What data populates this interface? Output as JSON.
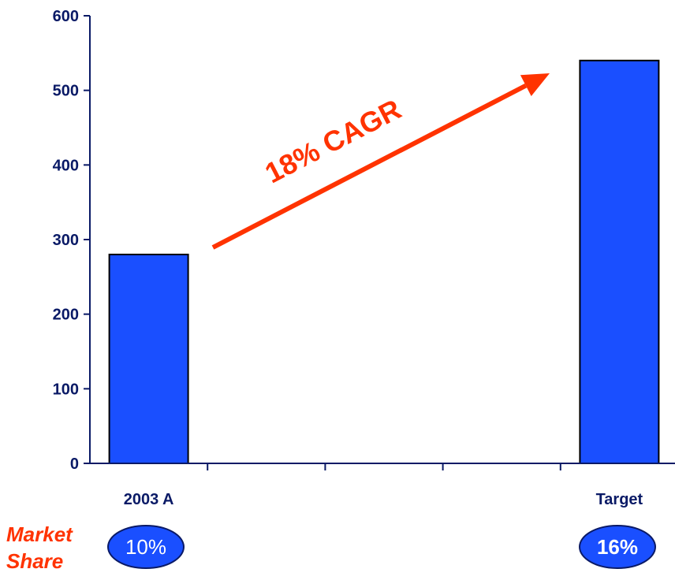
{
  "chart_data": {
    "type": "bar",
    "categories": [
      "2003 A",
      "",
      "",
      "",
      "Target"
    ],
    "values": [
      280,
      null,
      null,
      null,
      540
    ],
    "ylim": [
      0,
      600
    ],
    "yticks": [
      0,
      100,
      200,
      300,
      400,
      500,
      600
    ],
    "grid": false,
    "annotation": "18% CAGR",
    "market_share": {
      "label_line1": "Market",
      "label_line2": "Share",
      "values": [
        "10%",
        "16%"
      ]
    }
  },
  "colors": {
    "bar": "#1a4fff",
    "bar_edge": "#000000",
    "axis": "#0a1a66",
    "text": "#0a1a66",
    "accent": "#ff3300",
    "oval_fill": "#1a4fff",
    "oval_text": "#ffffff"
  }
}
